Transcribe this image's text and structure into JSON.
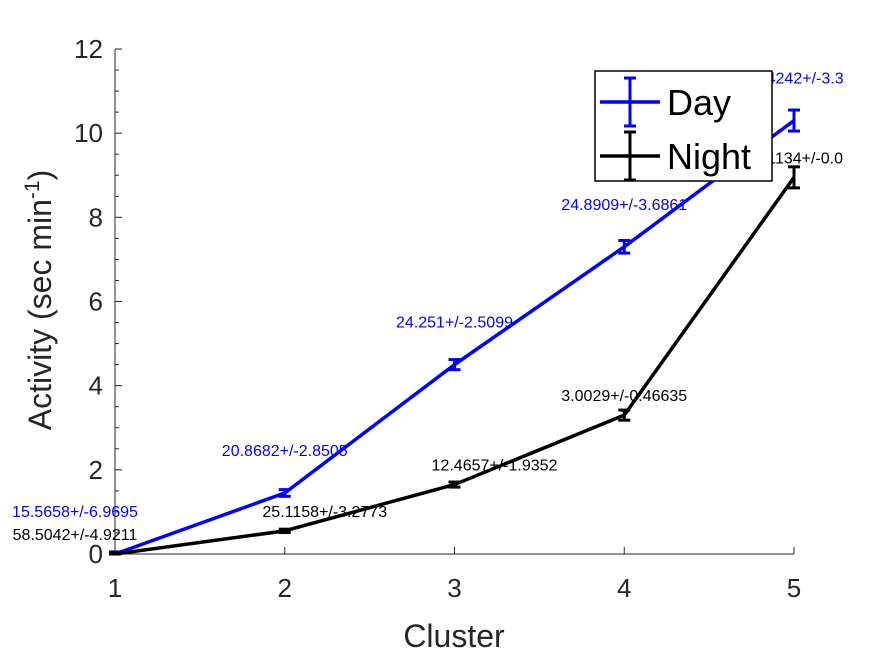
{
  "chart_data": {
    "type": "line",
    "xlabel": "Cluster",
    "ylabel": "Activity (sec min",
    "ylabel_exponent": "-1",
    "ylabel_close": ")",
    "x": [
      1,
      2,
      3,
      4,
      5
    ],
    "xlim": [
      1,
      5
    ],
    "ylim": [
      0,
      12
    ],
    "x_ticks": [
      "1",
      "2",
      "3",
      "4",
      "5"
    ],
    "y_ticks": [
      "0",
      "2",
      "4",
      "6",
      "8",
      "10",
      "12"
    ],
    "grid": false,
    "legend_position": "top-right",
    "series": [
      {
        "name": "Day",
        "color": "#0000ff",
        "values": [
          0.0,
          1.45,
          4.5,
          7.3,
          10.3
        ],
        "errors": [
          0.05,
          0.08,
          0.12,
          0.15,
          0.25
        ],
        "labels": [
          "15.5658+/-6.9695",
          "20.8682+/-2.8505",
          "24.251+/-2.5099",
          "24.8909+/-3.6861",
          "27.4242+/-3.3"
        ]
      },
      {
        "name": "Night",
        "color": "#000000",
        "values": [
          0.0,
          0.55,
          1.65,
          3.3,
          8.95
        ],
        "errors": [
          0.03,
          0.04,
          0.06,
          0.12,
          0.25
        ],
        "labels": [
          "58.5042+/-4.9211",
          "25.1158+/-3.2773",
          "12.4657+/-1.9352",
          "3.0029+/-0.46635",
          "0.91134+/-0.0"
        ]
      }
    ]
  }
}
